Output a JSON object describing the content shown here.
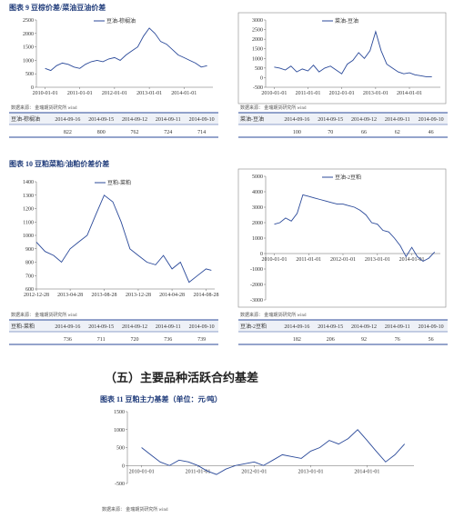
{
  "figures": [
    {
      "title": "图表 9  豆棕价差/菜油豆油价差"
    },
    {
      "title": "图表 10  豆粕菜粕/油粕价差价差"
    },
    {
      "title": "图表 11  豆粕主力基差（单位：元/吨）"
    }
  ],
  "source": "数据来源：  金瑞期货研究所  wind",
  "section_title": "（五）主要品种活跃合约基差",
  "tables": [
    {
      "header": [
        "豆油-棕榈油",
        "2014-09-16",
        "2014-09-15",
        "2014-09-12",
        "2014-09-11",
        "2014-09-10"
      ],
      "row": [
        822,
        800,
        762,
        724,
        714
      ]
    },
    {
      "header": [
        "菜油-豆油",
        "2014-09-16",
        "2014-09-15",
        "2014-09-12",
        "2014-09-11",
        "2014-09-10"
      ],
      "row": [
        100,
        70,
        66,
        62,
        46
      ]
    },
    {
      "header": [
        "豆粕-菜粕",
        "2014-09-16",
        "2014-09-15",
        "2014-09-12",
        "2014-09-11",
        "2014-09-10"
      ],
      "row": [
        736,
        711,
        720,
        736,
        739
      ]
    },
    {
      "header": [
        "豆油-2豆粕",
        "2014-09-16",
        "2014-09-15",
        "2014-09-12",
        "2014-09-11",
        "2014-09-10"
      ],
      "row": [
        182,
        206,
        92,
        76,
        56
      ]
    }
  ],
  "chart_data": [
    {
      "type": "line",
      "x": [
        "2010-01-01",
        "2010-03-01",
        "2010-05-01",
        "2010-07-01",
        "2010-09-01",
        "2010-11-01",
        "2011-01-01",
        "2011-03-01",
        "2011-05-01",
        "2011-07-01",
        "2011-09-01",
        "2011-11-01",
        "2012-01-01",
        "2012-03-01",
        "2012-05-01",
        "2012-07-01",
        "2012-09-01",
        "2012-11-01",
        "2013-01-01",
        "2013-03-01",
        "2013-05-01",
        "2013-07-01",
        "2013-09-01",
        "2013-11-01",
        "2014-01-01",
        "2014-03-01",
        "2014-05-01",
        "2014-07-01",
        "2014-09-01"
      ],
      "series": [
        {
          "name": "豆油-棕榈油",
          "color": "#2b4a9a",
          "values": [
            700,
            620,
            800,
            900,
            850,
            750,
            700,
            850,
            950,
            1000,
            950,
            1050,
            1100,
            1000,
            1200,
            1350,
            1500,
            1900,
            2200,
            2000,
            1700,
            1600,
            1400,
            1200,
            1100,
            1000,
            900,
            750,
            800
          ]
        }
      ],
      "xlim": [
        "2009-10-01",
        "2014-11-01"
      ],
      "ylim": [
        0,
        2500
      ],
      "yticks": [
        0,
        500,
        1000,
        1500,
        2000,
        2500
      ],
      "xticks": [
        "2010-01-01",
        "2011-01-01",
        "2012-01-01",
        "2013-01-01",
        "2014-01-01"
      ]
    },
    {
      "type": "line",
      "x": [
        "2010-01-01",
        "2010-03-01",
        "2010-05-01",
        "2010-07-01",
        "2010-09-01",
        "2010-11-01",
        "2011-01-01",
        "2011-03-01",
        "2011-05-01",
        "2011-07-01",
        "2011-09-01",
        "2011-11-01",
        "2012-01-01",
        "2012-03-01",
        "2012-05-01",
        "2012-07-01",
        "2012-09-01",
        "2012-11-01",
        "2013-01-01",
        "2013-03-01",
        "2013-05-01",
        "2013-07-01",
        "2013-09-01",
        "2013-11-01",
        "2014-01-01",
        "2014-03-01",
        "2014-05-01",
        "2014-07-01",
        "2014-09-01"
      ],
      "series": [
        {
          "name": "菜油-豆油",
          "color": "#2b4a9a",
          "values": [
            550,
            500,
            400,
            600,
            300,
            450,
            350,
            650,
            300,
            500,
            600,
            400,
            200,
            700,
            900,
            1300,
            1000,
            1400,
            2400,
            1400,
            700,
            500,
            300,
            200,
            250,
            150,
            100,
            50,
            50
          ]
        }
      ],
      "xlim": [
        "2009-10-01",
        "2014-12-01"
      ],
      "ylim": [
        -500,
        3000
      ],
      "yticks": [
        -500,
        0,
        500,
        1000,
        1500,
        2000,
        2500,
        3000
      ],
      "xticks": [
        "2010-01-01",
        "2011-01-01",
        "2012-01-01",
        "2013-01-01",
        "2014-01-01"
      ]
    },
    {
      "type": "line",
      "x": [
        "2012-12-28",
        "2013-01-28",
        "2013-02-28",
        "2013-03-28",
        "2013-04-28",
        "2013-05-28",
        "2013-06-28",
        "2013-07-28",
        "2013-08-28",
        "2013-09-28",
        "2013-10-28",
        "2013-11-28",
        "2013-12-28",
        "2014-01-28",
        "2014-02-28",
        "2014-03-28",
        "2014-04-28",
        "2014-05-28",
        "2014-06-28",
        "2014-07-28",
        "2014-08-28",
        "2014-09-16"
      ],
      "series": [
        {
          "name": "豆粕-菜粕",
          "color": "#2b4a9a",
          "values": [
            950,
            880,
            850,
            800,
            900,
            950,
            1000,
            1150,
            1300,
            1250,
            1100,
            900,
            850,
            800,
            780,
            850,
            750,
            800,
            650,
            700,
            750,
            740
          ]
        }
      ],
      "xlim": [
        "2012-12-28",
        "2014-09-28"
      ],
      "ylim": [
        600,
        1400
      ],
      "yticks": [
        600,
        700,
        800,
        900,
        1000,
        1100,
        1200,
        1300,
        1400
      ],
      "xticks": [
        "2012-12-28",
        "2013-04-28",
        "2013-08-28",
        "2013-12-28",
        "2014-04-28",
        "2014-08-28"
      ]
    },
    {
      "type": "line",
      "x": [
        "2010-01-01",
        "2010-03-01",
        "2010-05-01",
        "2010-07-01",
        "2010-09-01",
        "2010-11-01",
        "2011-01-01",
        "2011-03-01",
        "2011-05-01",
        "2011-07-01",
        "2011-09-01",
        "2011-11-01",
        "2012-01-01",
        "2012-03-01",
        "2012-05-01",
        "2012-07-01",
        "2012-09-01",
        "2012-11-01",
        "2013-01-01",
        "2013-03-01",
        "2013-05-01",
        "2013-07-01",
        "2013-09-01",
        "2013-11-01",
        "2014-01-01",
        "2014-03-01",
        "2014-05-01",
        "2014-07-01",
        "2014-09-01"
      ],
      "series": [
        {
          "name": "豆油-2豆粕",
          "color": "#2b4a9a",
          "values": [
            1900,
            2000,
            2300,
            2100,
            2600,
            3800,
            3700,
            3600,
            3500,
            3400,
            3300,
            3200,
            3200,
            3100,
            3000,
            2800,
            2500,
            2000,
            1900,
            1500,
            1400,
            1000,
            500,
            -200,
            400,
            -200,
            -500,
            -300,
            100
          ]
        }
      ],
      "xlim": [
        "2009-10-01",
        "2014-11-01"
      ],
      "ylim": [
        -3000,
        5000
      ],
      "yticks": [
        -3000,
        -2000,
        -1000,
        0,
        1000,
        2000,
        3000,
        4000,
        5000
      ],
      "xticks": [
        "2010-01-01",
        "2011-01-01",
        "2012-01-01",
        "2013-01-01",
        "2014-01-01"
      ]
    },
    {
      "type": "line",
      "x": [
        "2010-01-01",
        "2010-03-01",
        "2010-05-01",
        "2010-07-01",
        "2010-09-01",
        "2010-11-01",
        "2011-01-01",
        "2011-03-01",
        "2011-05-01",
        "2011-07-01",
        "2011-09-01",
        "2011-11-01",
        "2012-01-01",
        "2012-03-01",
        "2012-05-01",
        "2012-07-01",
        "2012-09-01",
        "2012-11-01",
        "2013-01-01",
        "2013-03-01",
        "2013-05-01",
        "2013-07-01",
        "2013-09-01",
        "2013-11-01",
        "2014-01-01",
        "2014-03-01",
        "2014-05-01",
        "2014-07-01",
        "2014-09-01"
      ],
      "series": [
        {
          "name": "",
          "color": "#2b4a9a",
          "values": [
            500,
            300,
            100,
            0,
            150,
            100,
            0,
            -150,
            -250,
            -100,
            0,
            50,
            100,
            0,
            150,
            300,
            250,
            200,
            400,
            500,
            700,
            600,
            750,
            1000,
            700,
            400,
            100,
            300,
            600
          ]
        }
      ],
      "xlim": [
        "2009-10-01",
        "2014-11-01"
      ],
      "ylim": [
        -500,
        1500
      ],
      "yticks": [
        -500,
        0,
        500,
        1000,
        1500
      ],
      "xticks": [
        "2010-01-01",
        "2011-01-01",
        "2012-01-01",
        "2013-01-01",
        "2014-01-01"
      ]
    }
  ]
}
